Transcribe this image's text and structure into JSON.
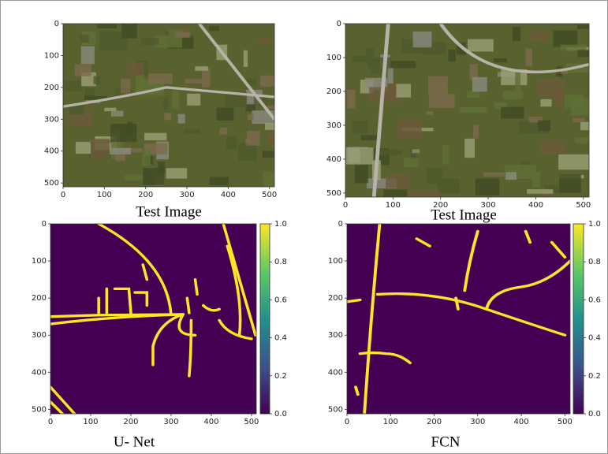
{
  "chart_data": [
    {
      "type": "image",
      "caption": "Test Image",
      "xlim": [
        0,
        512
      ],
      "ylim": [
        512,
        0
      ],
      "xticks": [
        0,
        100,
        200,
        300,
        400,
        500
      ],
      "yticks": [
        0,
        100,
        200,
        300,
        400,
        500
      ]
    },
    {
      "type": "image",
      "caption": "Test Image",
      "xlim": [
        0,
        512
      ],
      "ylim": [
        512,
        0
      ],
      "xticks": [
        0,
        100,
        200,
        300,
        400,
        500
      ],
      "yticks": [
        0,
        100,
        200,
        300,
        400,
        500
      ]
    },
    {
      "type": "heatmap",
      "caption": "U- Net",
      "xlim": [
        0,
        512
      ],
      "ylim": [
        512,
        0
      ],
      "xticks": [
        0,
        100,
        200,
        300,
        400,
        500
      ],
      "yticks": [
        0,
        100,
        200,
        300,
        400,
        500
      ],
      "colorbar": {
        "lim": [
          0,
          1
        ],
        "ticks": [
          {
            "value": 0,
            "label": "0.0"
          },
          0.2,
          0.4,
          0.6,
          0.8,
          {
            "value": 1,
            "label": "1.0"
          }
        ],
        "colormap": [
          "#440154",
          "#3b528b",
          "#21918c",
          "#5ec962",
          "#fde725"
        ]
      }
    },
    {
      "type": "heatmap",
      "caption": "FCN",
      "xlim": [
        0,
        512
      ],
      "ylim": [
        512,
        0
      ],
      "xticks": [
        0,
        100,
        200,
        300,
        400,
        500
      ],
      "yticks": [
        0,
        100,
        200,
        300,
        400,
        500
      ],
      "colorbar": {
        "lim": [
          0,
          1
        ],
        "ticks": [
          {
            "value": 0,
            "label": "0.0"
          },
          0.2,
          0.4,
          0.6,
          0.8,
          {
            "value": 1,
            "label": "1.0"
          }
        ],
        "colormap": [
          "#440154",
          "#3b528b",
          "#21918c",
          "#5ec962",
          "#fde725"
        ]
      }
    }
  ]
}
